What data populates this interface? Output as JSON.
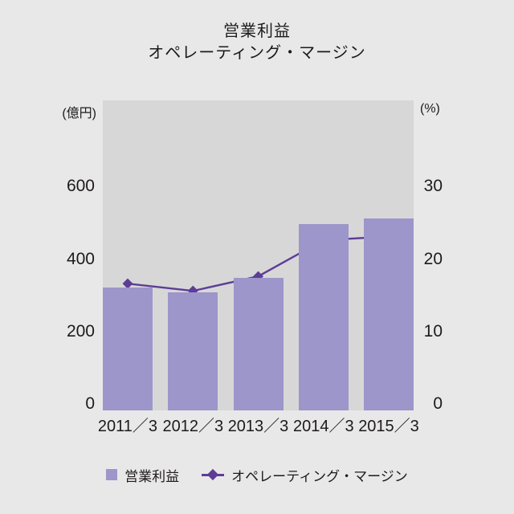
{
  "title": {
    "line1": "営業利益",
    "line2": "オペレーティング・マージン"
  },
  "axes": {
    "left_unit": "(億円)",
    "right_unit": "(%)"
  },
  "legend": {
    "bar_label": "営業利益",
    "line_label": "オペレーティング・マージン"
  },
  "chart_data": {
    "type": "bar",
    "subtype": "bar+line combo, dual axis",
    "title": "営業利益 / オペレーティング・マージン",
    "categories": [
      "2011／3",
      "2012／3",
      "2013／3",
      "2014／3",
      "2015／3"
    ],
    "series": [
      {
        "name": "営業利益",
        "type": "bar",
        "axis": "left",
        "unit": "億円",
        "values": [
          340,
          325,
          365,
          515,
          530
        ]
      },
      {
        "name": "オペレーティング・マージン",
        "type": "line",
        "axis": "right",
        "unit": "%",
        "marker": "diamond",
        "values": [
          17.5,
          16.5,
          18.5,
          23.5,
          24.0
        ]
      }
    ],
    "left_axis": {
      "label": "(億円)",
      "ticks": [
        0,
        200,
        400,
        600
      ],
      "ylim": [
        0,
        856
      ]
    },
    "right_axis": {
      "label": "(%)",
      "ticks": [
        0,
        10,
        20,
        30
      ],
      "ylim": [
        0,
        42.8
      ]
    },
    "grid": false,
    "legend_position": "bottom",
    "colors": {
      "bar": "#9c96ca",
      "line": "#5d3d97",
      "plot_background": "#d8d7d7",
      "page_background": "#e9e8e8",
      "text": "#1d1a1b"
    }
  }
}
